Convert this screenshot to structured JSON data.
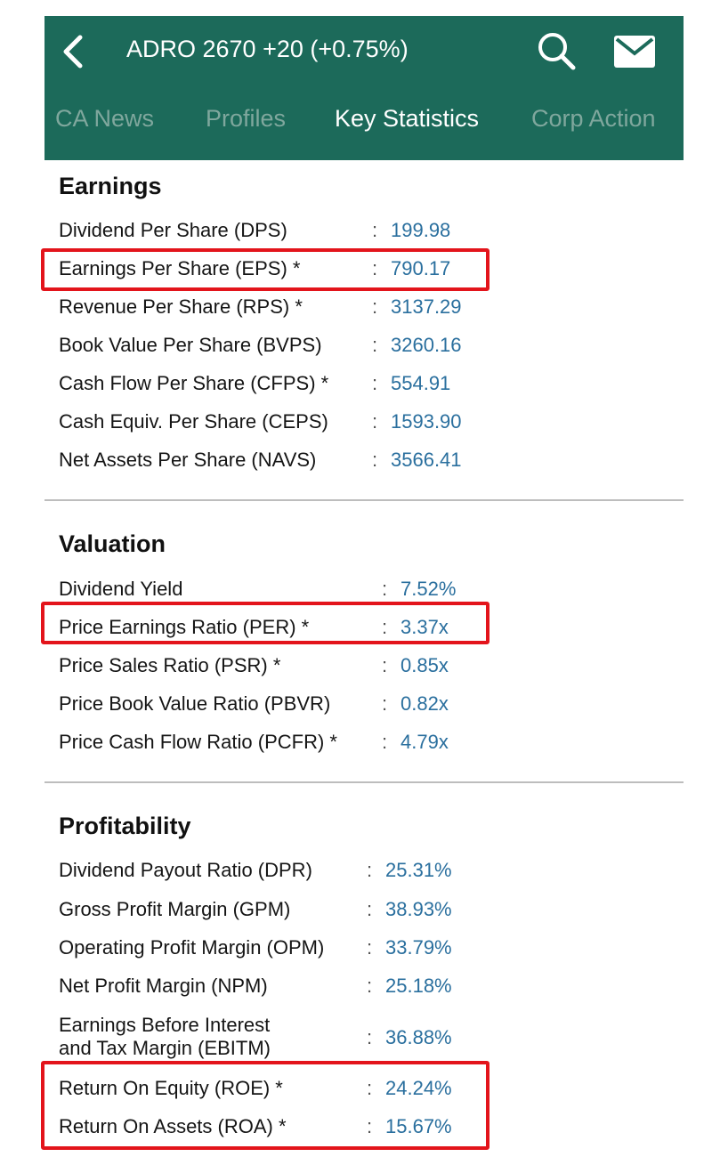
{
  "header": {
    "title": "ADRO  2670 +20 (+0.75%)",
    "colors": {
      "bar": "#1c6a5a",
      "active_tab": "#ffffff",
      "inactive_tab": "#7fa79d",
      "value": "#2a6f9e",
      "highlight": "#e3141b"
    },
    "icons": {
      "back": "chevron-left-icon",
      "search": "search-icon",
      "mail": "mail-icon"
    }
  },
  "tabs": [
    {
      "label": "CA News",
      "active": false
    },
    {
      "label": "Profiles",
      "active": false
    },
    {
      "label": "Key Statistics",
      "active": true
    },
    {
      "label": "Corp Action",
      "active": false
    }
  ],
  "sections": {
    "earnings": {
      "title": "Earnings",
      "rows": [
        {
          "label": "Dividend Per Share (DPS)",
          "value": "199.98"
        },
        {
          "label": "Earnings Per Share (EPS) *",
          "value": "790.17"
        },
        {
          "label": "Revenue Per Share (RPS) *",
          "value": "3137.29"
        },
        {
          "label": "Book Value Per Share (BVPS)",
          "value": "3260.16"
        },
        {
          "label": "Cash Flow Per Share (CFPS) *",
          "value": "554.91"
        },
        {
          "label": "Cash Equiv. Per Share (CEPS)",
          "value": "1593.90"
        },
        {
          "label": "Net Assets Per Share (NAVS)",
          "value": "3566.41"
        }
      ]
    },
    "valuation": {
      "title": "Valuation",
      "rows": [
        {
          "label": "Dividend Yield",
          "value": "7.52%"
        },
        {
          "label": "Price Earnings Ratio (PER) *",
          "value": "3.37x"
        },
        {
          "label": "Price Sales Ratio (PSR) *",
          "value": "0.85x"
        },
        {
          "label": "Price Book Value Ratio (PBVR)",
          "value": "0.82x"
        },
        {
          "label": "Price Cash Flow Ratio (PCFR) *",
          "value": "4.79x"
        }
      ]
    },
    "profitability": {
      "title": "Profitability",
      "rows": [
        {
          "label": "Dividend Payout Ratio (DPR)",
          "value": "25.31%"
        },
        {
          "label": "Gross Profit Margin (GPM)",
          "value": "38.93%"
        },
        {
          "label": "Operating Profit Margin (OPM)",
          "value": "33.79%"
        },
        {
          "label": "Net Profit Margin (NPM)",
          "value": "25.18%"
        },
        {
          "label_line1": "Earnings Before Interest",
          "label_line2": "and Tax Margin (EBITM)",
          "value": "36.88%"
        },
        {
          "label": "Return On Equity (ROE) *",
          "value": "24.24%"
        },
        {
          "label": "Return On Assets (ROA) *",
          "value": "15.67%"
        }
      ]
    }
  },
  "separator": ":"
}
